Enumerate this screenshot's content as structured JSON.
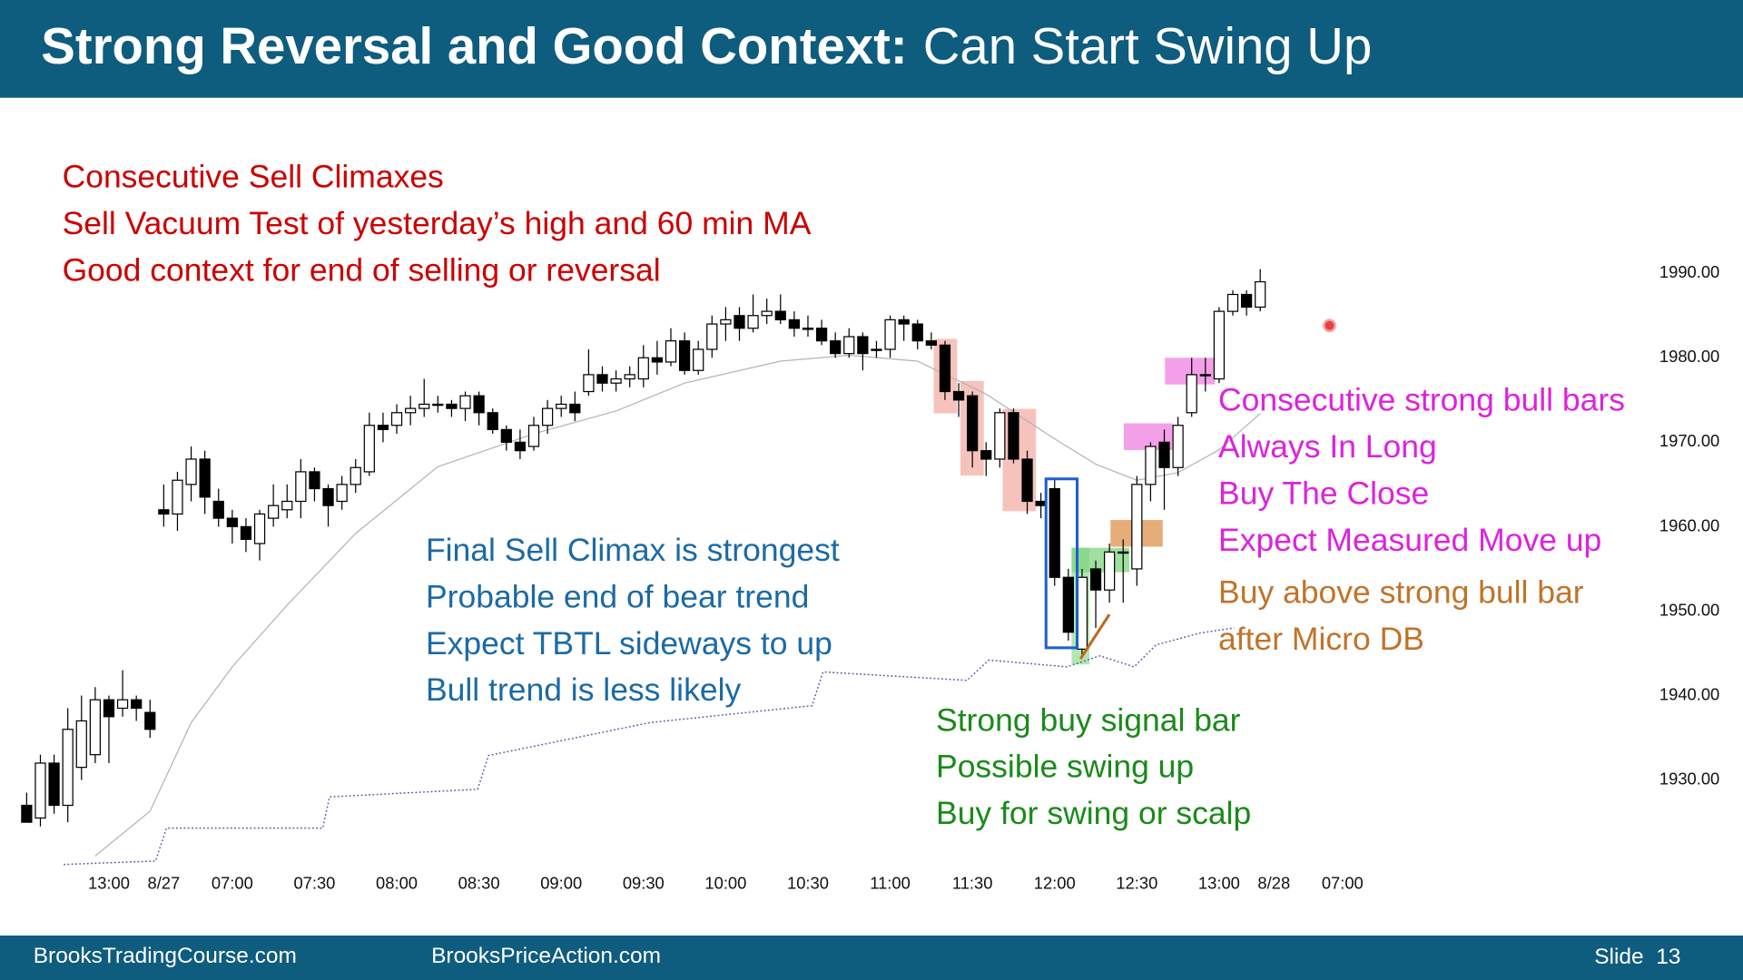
{
  "header": {
    "title_bold": "Strong Reversal and Good Context:",
    "title_rest": "Can Start Swing Up"
  },
  "chart_data": {
    "type": "candlestick",
    "ohlc": [
      [
        1927,
        1928.5,
        1925,
        1925
      ],
      [
        1925.5,
        1933,
        1924.5,
        1932
      ],
      [
        1932,
        1933,
        1926,
        1927
      ],
      [
        1927,
        1938.5,
        1925,
        1936
      ],
      [
        1931.5,
        1940,
        1930,
        1937
      ],
      [
        1933,
        1941,
        1932,
        1939.5
      ],
      [
        1939.5,
        1940,
        1932,
        1937.5
      ],
      [
        1938.5,
        1943,
        1937.5,
        1939.5
      ],
      [
        1939.5,
        1940,
        1937,
        1938.5
      ],
      [
        1938,
        1939.5,
        1935,
        1936
      ],
      [
        1962,
        1965,
        1960,
        1961.5
      ],
      [
        1961.5,
        1966.5,
        1959.5,
        1965.5
      ],
      [
        1965,
        1969.5,
        1963,
        1968
      ],
      [
        1968,
        1969,
        1961.5,
        1963.5
      ],
      [
        1963,
        1964.5,
        1960,
        1961
      ],
      [
        1961,
        1962,
        1958,
        1960
      ],
      [
        1960,
        1961,
        1957,
        1958.5
      ],
      [
        1958,
        1962,
        1956,
        1961.5
      ],
      [
        1961,
        1965,
        1960,
        1962.5
      ],
      [
        1962,
        1965,
        1961,
        1963
      ],
      [
        1963,
        1968,
        1961,
        1966.5
      ],
      [
        1966.5,
        1967,
        1963,
        1964.5
      ],
      [
        1964.5,
        1965,
        1960,
        1962.5
      ],
      [
        1963,
        1966,
        1962,
        1965
      ],
      [
        1965,
        1968,
        1964,
        1967
      ],
      [
        1966.5,
        1973.5,
        1966,
        1972
      ],
      [
        1972,
        1973.5,
        1970,
        1971.5
      ],
      [
        1972,
        1974.5,
        1971,
        1973.5
      ],
      [
        1973.5,
        1975.5,
        1972,
        1974
      ],
      [
        1974,
        1977.5,
        1973,
        1974.5
      ],
      [
        1974.5,
        1975.5,
        1973.5,
        1974.5
      ],
      [
        1974.5,
        1975,
        1973,
        1974
      ],
      [
        1974,
        1976,
        1972.5,
        1975.5
      ],
      [
        1975.5,
        1976,
        1972,
        1973.5
      ],
      [
        1973.5,
        1974,
        1971,
        1971.5
      ],
      [
        1971.5,
        1972,
        1969,
        1970
      ],
      [
        1970,
        1971.5,
        1968,
        1969
      ],
      [
        1969.5,
        1973,
        1969,
        1972
      ],
      [
        1972,
        1975,
        1971,
        1974
      ],
      [
        1974,
        1975.5,
        1973,
        1974.5
      ],
      [
        1974.5,
        1976,
        1972.5,
        1973.5
      ],
      [
        1976,
        1981,
        1975.5,
        1978
      ],
      [
        1978,
        1979,
        1976,
        1977
      ],
      [
        1977,
        1978.5,
        1976,
        1977.5
      ],
      [
        1977.5,
        1979,
        1976.5,
        1978
      ],
      [
        1977.5,
        1981.5,
        1976.5,
        1980
      ],
      [
        1980,
        1982,
        1978,
        1979.5
      ],
      [
        1979.5,
        1983.5,
        1979,
        1982
      ],
      [
        1982,
        1983,
        1978,
        1978.5
      ],
      [
        1978.5,
        1982,
        1978,
        1981
      ],
      [
        1981,
        1985,
        1980,
        1984
      ],
      [
        1984,
        1986,
        1982,
        1984.5
      ],
      [
        1985,
        1986,
        1982,
        1983.5
      ],
      [
        1983.5,
        1987.5,
        1983,
        1985
      ],
      [
        1985,
        1987,
        1984,
        1985.5
      ],
      [
        1985.5,
        1987.5,
        1984,
        1984.5
      ],
      [
        1984.5,
        1985.5,
        1982.5,
        1983.5
      ],
      [
        1983.5,
        1985,
        1982.5,
        1983.5
      ],
      [
        1983.5,
        1984.5,
        1981.5,
        1982
      ],
      [
        1982,
        1983,
        1980,
        1980.5
      ],
      [
        1980.5,
        1983.5,
        1980,
        1982.5
      ],
      [
        1982.5,
        1983,
        1978.5,
        1980.5
      ],
      [
        1981,
        1982,
        1980,
        1981
      ],
      [
        1981,
        1985,
        1980,
        1984.5
      ],
      [
        1984.5,
        1985,
        1982,
        1984
      ],
      [
        1984,
        1984.5,
        1981,
        1982
      ],
      [
        1982,
        1983,
        1981,
        1981.5
      ],
      [
        1981.5,
        1982,
        1975,
        1976
      ],
      [
        1976,
        1977,
        1973,
        1975
      ],
      [
        1975.5,
        1976,
        1967,
        1969
      ],
      [
        1969,
        1970,
        1966,
        1968
      ],
      [
        1968,
        1974,
        1967,
        1973.5
      ],
      [
        1973.5,
        1974,
        1967.5,
        1968
      ],
      [
        1968,
        1969,
        1961.5,
        1963
      ],
      [
        1963,
        1964,
        1961,
        1962.5
      ],
      [
        1964.5,
        1965.5,
        1953,
        1954
      ],
      [
        1954,
        1955,
        1946.5,
        1947.5
      ],
      [
        1945.5,
        1955,
        1944.5,
        1954
      ],
      [
        1955,
        1956,
        1948,
        1952.5
      ],
      [
        1952.5,
        1958,
        1951,
        1957
      ],
      [
        1957,
        1958.5,
        1951,
        1957
      ],
      [
        1955,
        1966,
        1953,
        1965
      ],
      [
        1965,
        1970,
        1963,
        1969.5
      ],
      [
        1970,
        1971.5,
        1962,
        1967
      ],
      [
        1967,
        1973,
        1966,
        1972
      ],
      [
        1973.5,
        1980,
        1973,
        1978
      ],
      [
        1978,
        1980,
        1976,
        1978
      ],
      [
        1977.5,
        1986,
        1977,
        1985.5
      ],
      [
        1985.5,
        1988,
        1985,
        1987.5
      ],
      [
        1987.5,
        1988,
        1985,
        1986
      ],
      [
        1986,
        1990.5,
        1985.5,
        1989
      ]
    ],
    "up_color": "#ffffff",
    "down_color": "#000000",
    "lines": [
      {
        "color": "#b4b4b4",
        "style": "solid",
        "x": [
          5,
          9,
          12,
          15,
          19,
          24,
          30,
          37,
          43,
          48,
          55,
          60,
          65,
          70,
          75,
          78,
          81,
          84,
          87,
          90
        ],
        "values": [
          1921,
          1926.3,
          1936.8,
          1943.4,
          1950.7,
          1959.2,
          1967.1,
          1971,
          1973.7,
          1977,
          1979.6,
          1980.3,
          1979.6,
          1975.7,
          1970.4,
          1967.4,
          1965.5,
          1966.4,
          1969.1,
          1973.4
        ]
      },
      {
        "color": "#5a5aa0",
        "style": "dotted",
        "x": [
          2.7,
          9.4,
          10.2,
          21.6,
          22.1,
          32.9,
          33.7,
          45.5,
          57.3,
          58.1,
          68.6,
          70.2,
          75.9,
          78.3,
          80.8,
          82.4,
          85.6,
          88.1
        ],
        "values": [
          1920,
          1920.4,
          1924.3,
          1924.3,
          1928,
          1928.9,
          1932.9,
          1936.8,
          1938.8,
          1942.8,
          1941.8,
          1944.2,
          1943.4,
          1944.7,
          1943.4,
          1946,
          1947.4,
          1948
        ]
      }
    ],
    "xlim": [
      -1,
      100
    ],
    "xticks": [
      {
        "value": 6,
        "label": "13:00"
      },
      {
        "value": 10,
        "label": "8/27"
      },
      {
        "value": 15,
        "label": "07:00"
      },
      {
        "value": 21,
        "label": "07:30"
      },
      {
        "value": 27,
        "label": "08:00"
      },
      {
        "value": 33,
        "label": "08:30"
      },
      {
        "value": 39,
        "label": "09:00"
      },
      {
        "value": 45,
        "label": "09:30"
      },
      {
        "value": 51,
        "label": "10:00"
      },
      {
        "value": 57,
        "label": "10:30"
      },
      {
        "value": 63,
        "label": "11:00"
      },
      {
        "value": 69,
        "label": "11:30"
      },
      {
        "value": 75,
        "label": "12:00"
      },
      {
        "value": 81,
        "label": "12:30"
      },
      {
        "value": 87,
        "label": "13:00"
      },
      {
        "value": 91,
        "label": "8/28"
      },
      {
        "value": 96,
        "label": "07:00"
      }
    ],
    "ylim": [
      1919,
      1996
    ],
    "yticks": [
      {
        "value": 1930,
        "label": "1930.00"
      },
      {
        "value": 1940,
        "label": "1940.00"
      },
      {
        "value": 1950,
        "label": "1950.00"
      },
      {
        "value": 1960,
        "label": "1960.00"
      },
      {
        "value": 1970,
        "label": "1970.00"
      },
      {
        "value": 1980,
        "label": "1980.00"
      },
      {
        "value": 1990,
        "label": "1990.00"
      }
    ],
    "annotations": [
      {
        "color": "#cc0000",
        "lines": [
          "Consecutive Sell Climaxes",
          "Sell Vacuum Test of yesterday’s high and 60 min MA",
          "Good context for end of selling or reversal"
        ]
      },
      {
        "color": "#1b6aa5",
        "lines": [
          "Final Sell Climax is strongest",
          "Probable end of bear trend",
          "Expect TBTL sideways to up",
          "Bull trend is less likely"
        ]
      },
      {
        "color": "#1a8a1a",
        "lines": [
          "Strong buy signal bar",
          "Possible swing up",
          "Buy for swing or scalp"
        ]
      },
      {
        "color": "#dd22dd",
        "lines": [
          "Consecutive strong bull bars",
          "Always In Long",
          "Buy The Close",
          "Expect Measured Move up"
        ]
      },
      {
        "color": "#c0742a",
        "lines": [
          "Buy above strong bull bar",
          "after Micro DB"
        ]
      }
    ]
  },
  "footer": {
    "left": "BrooksTradingCourse.com",
    "center": "BrooksPriceAction.com",
    "slide": "Slide  13"
  }
}
